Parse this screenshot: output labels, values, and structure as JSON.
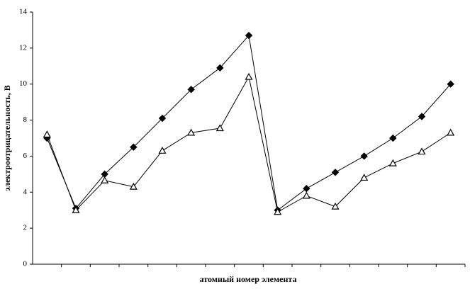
{
  "chart_data": {
    "type": "line",
    "x_label": "атомный номер элемента",
    "y_label": "электроотрицательность, В",
    "categories": [
      null,
      null,
      null,
      null,
      null,
      null,
      null,
      null,
      null,
      null,
      null,
      null,
      null,
      null,
      null
    ],
    "series": [
      {
        "color": "#000000",
        "marker": "diamond",
        "marker_fill": "#000000",
        "values": [
          7.0,
          3.1,
          5.0,
          6.5,
          8.1,
          9.7,
          10.9,
          12.7,
          3.0,
          4.2,
          5.1,
          6.0,
          7.0,
          8.2,
          10.0
        ]
      },
      {
        "color": "#000000",
        "marker": "triangle",
        "marker_fill": "#ffffff",
        "values": [
          7.2,
          3.0,
          4.65,
          4.3,
          6.3,
          7.3,
          7.55,
          10.4,
          2.9,
          3.8,
          3.2,
          4.8,
          5.6,
          6.25,
          7.3
        ]
      }
    ],
    "ylim": [
      0,
      14
    ],
    "yticks": [
      0,
      2,
      4,
      6,
      8,
      10,
      12,
      14
    ],
    "grid": false
  }
}
